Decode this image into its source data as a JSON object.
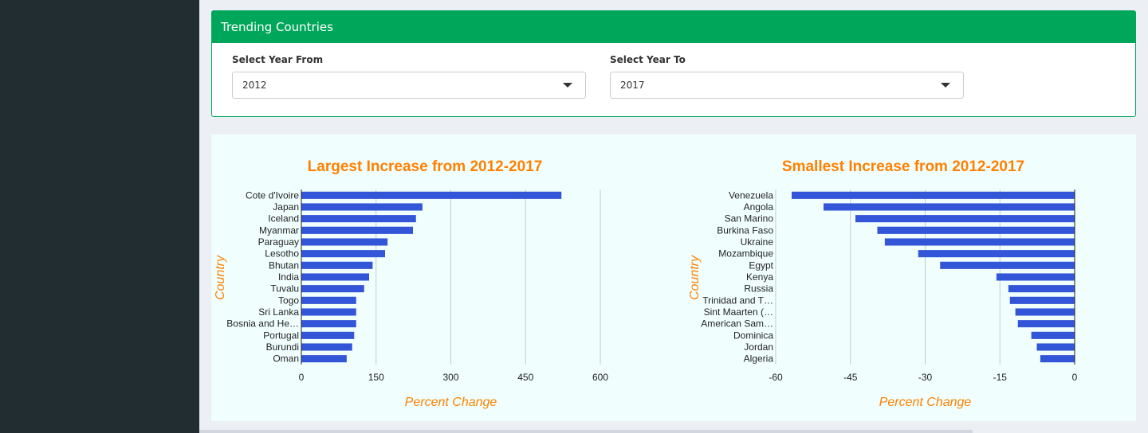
{
  "box": {
    "title": "Trending Countries",
    "from_label": "Select Year From",
    "from_value": "2012",
    "to_label": "Select Year To",
    "to_value": "2017"
  },
  "colors": {
    "header": "#00a65a",
    "bar": "#3355d8",
    "title": "#ff8000",
    "sidebar": "#222d32"
  },
  "chart_data": [
    {
      "type": "bar",
      "orientation": "horizontal",
      "title": "Largest Increase from 2012-2017",
      "xlabel": "Percent Change",
      "ylabel": "Country",
      "xlim": [
        0,
        600
      ],
      "xticks": [
        0,
        150,
        300,
        450,
        600
      ],
      "categories": [
        "Cote d'Ivoire",
        "Japan",
        "Iceland",
        "Myanmar",
        "Paraguay",
        "Lesotho",
        "Bhutan",
        "India",
        "Tuvalu",
        "Togo",
        "Sri Lanka",
        "Bosnia and He…",
        "Portugal",
        "Burundi",
        "Oman"
      ],
      "values": [
        522,
        243,
        230,
        224,
        173,
        168,
        143,
        136,
        126,
        110,
        110,
        110,
        106,
        102,
        91
      ]
    },
    {
      "type": "bar",
      "orientation": "horizontal",
      "title": "Smallest Increase from 2012-2017",
      "xlabel": "Percent Change",
      "ylabel": "Country",
      "xlim": [
        -60,
        0
      ],
      "xticks": [
        -60,
        -45,
        -30,
        -15,
        0
      ],
      "categories": [
        "Venezuela",
        "Angola",
        "San Marino",
        "Burkina Faso",
        "Ukraine",
        "Mozambique",
        "Egypt",
        "Kenya",
        "Russia",
        "Trinidad and T…",
        "Sint Maarten (…",
        "American Sam…",
        "Dominica",
        "Jordan",
        "Algeria"
      ],
      "values": [
        -56.8,
        -50.4,
        -44.0,
        -39.6,
        -38.1,
        -31.4,
        -27.0,
        -15.7,
        -13.3,
        -13.0,
        -11.9,
        -11.4,
        -8.7,
        -7.6,
        -6.9
      ]
    }
  ]
}
